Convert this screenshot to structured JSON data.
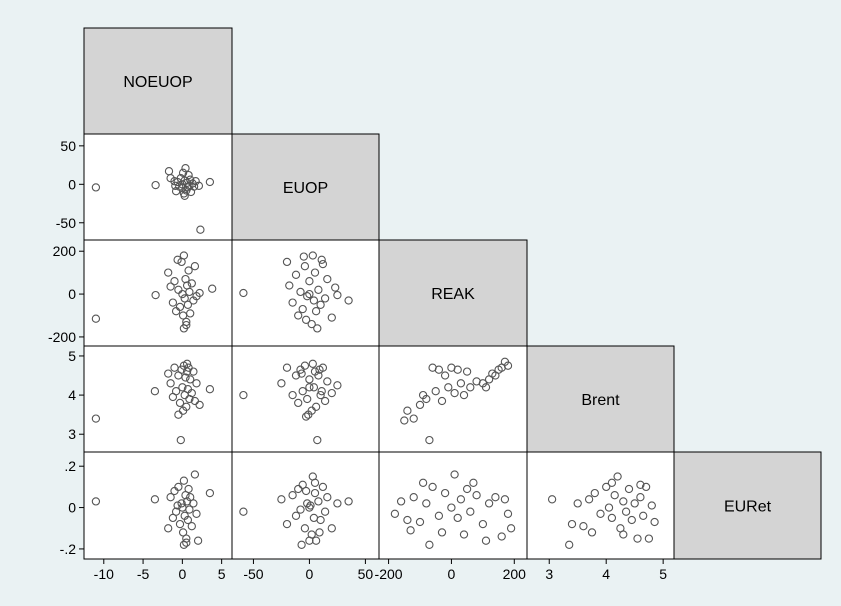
{
  "chart_data": {
    "type": "scatter",
    "subtype": "scatter-matrix (lower half)",
    "variables": [
      "NOEUOP",
      "EUOP",
      "REAK",
      "Brent",
      "EURet"
    ],
    "diagonal_labels": [
      "NOEUOP",
      "EUOP",
      "REAK",
      "Brent",
      "EURet"
    ],
    "axes": {
      "NOEUOP": {
        "range": [
          -11.5,
          5.3
        ],
        "ticks": [
          -10,
          -5,
          0,
          5
        ],
        "tick_labels": [
          "-10",
          "-5",
          "0",
          "5"
        ]
      },
      "EUOP": {
        "range": [
          -62,
          55
        ],
        "ticks": [
          -50,
          0,
          50
        ],
        "tick_labels": [
          "-50",
          "0",
          "50"
        ]
      },
      "REAK": {
        "range": [
          -205,
          215
        ],
        "ticks": [
          -200,
          0,
          200
        ],
        "tick_labels": [
          "-200",
          "0",
          "200"
        ]
      },
      "Brent": {
        "range": [
          2.75,
          5.05
        ],
        "ticks": [
          3,
          4,
          5
        ],
        "tick_labels": [
          "3",
          "4",
          "5"
        ]
      },
      "EURet": {
        "range": [
          -0.21,
          0.23
        ],
        "ticks": [
          -0.2,
          0,
          0.2
        ],
        "tick_labels": [
          "-.2",
          "0",
          ".2"
        ]
      }
    },
    "panels": [
      {
        "x": "NOEUOP",
        "y": "EUOP",
        "points": [
          [
            -11,
            -4
          ],
          [
            -3.4,
            -1
          ],
          [
            -1.7,
            17
          ],
          [
            -1.5,
            8
          ],
          [
            -1,
            4
          ],
          [
            -0.9,
            -2
          ],
          [
            -0.6,
            3
          ],
          [
            -0.4,
            -3
          ],
          [
            -0.2,
            8
          ],
          [
            0,
            0
          ],
          [
            0,
            -5
          ],
          [
            0.1,
            15
          ],
          [
            0.2,
            -12
          ],
          [
            0.3,
            5
          ],
          [
            0.4,
            21
          ],
          [
            0.5,
            -8
          ],
          [
            0.6,
            2
          ],
          [
            0.7,
            -4
          ],
          [
            0.8,
            12
          ],
          [
            0.9,
            -2
          ],
          [
            1,
            6
          ],
          [
            1.1,
            -10
          ],
          [
            1.3,
            1
          ],
          [
            1.5,
            -3
          ],
          [
            1.7,
            4
          ],
          [
            2.1,
            -2
          ],
          [
            -0.8,
            -9
          ],
          [
            0.3,
            -15
          ],
          [
            3.5,
            3
          ],
          [
            2.3,
            -59
          ]
        ]
      },
      {
        "x": "NOEUOP",
        "y": "REAK",
        "points": [
          [
            -11,
            -115
          ],
          [
            -3.4,
            -5
          ],
          [
            -1.8,
            100
          ],
          [
            -1.5,
            35
          ],
          [
            -1.2,
            -40
          ],
          [
            -1,
            60
          ],
          [
            -0.8,
            -80
          ],
          [
            -0.5,
            20
          ],
          [
            -0.3,
            -60
          ],
          [
            -0.1,
            150
          ],
          [
            0,
            0
          ],
          [
            0.1,
            -100
          ],
          [
            0.2,
            180
          ],
          [
            0.3,
            -20
          ],
          [
            0.4,
            70
          ],
          [
            0.5,
            -130
          ],
          [
            0.6,
            40
          ],
          [
            0.7,
            -50
          ],
          [
            0.8,
            110
          ],
          [
            0.9,
            10
          ],
          [
            1,
            -90
          ],
          [
            1.2,
            50
          ],
          [
            1.4,
            -30
          ],
          [
            1.6,
            130
          ],
          [
            1.8,
            -10
          ],
          [
            2.2,
            5
          ],
          [
            0.2,
            -160
          ],
          [
            -0.6,
            160
          ],
          [
            3.8,
            25
          ],
          [
            0.5,
            -145
          ]
        ]
      },
      {
        "x": "EUOP",
        "y": "REAK",
        "points": [
          [
            -59,
            5
          ],
          [
            -20,
            150
          ],
          [
            -18,
            40
          ],
          [
            -15,
            -40
          ],
          [
            -12,
            90
          ],
          [
            -10,
            -100
          ],
          [
            -8,
            10
          ],
          [
            -6,
            -70
          ],
          [
            -4,
            130
          ],
          [
            -2,
            -10
          ],
          [
            0,
            60
          ],
          [
            2,
            -140
          ],
          [
            3,
            180
          ],
          [
            4,
            -30
          ],
          [
            5,
            100
          ],
          [
            6,
            -80
          ],
          [
            8,
            20
          ],
          [
            10,
            -50
          ],
          [
            12,
            140
          ],
          [
            14,
            -20
          ],
          [
            16,
            70
          ],
          [
            20,
            -110
          ],
          [
            23,
            30
          ],
          [
            25,
            -5
          ],
          [
            35,
            -30
          ],
          [
            -5,
            175
          ],
          [
            7,
            -160
          ],
          [
            0,
            0
          ],
          [
            -3,
            -120
          ],
          [
            11,
            160
          ]
        ]
      },
      {
        "x": "NOEUOP",
        "y": "Brent",
        "points": [
          [
            -11,
            3.4
          ],
          [
            -3.5,
            4.1
          ],
          [
            -1.8,
            4.55
          ],
          [
            -1.5,
            4.3
          ],
          [
            -1.2,
            3.95
          ],
          [
            -1,
            4.7
          ],
          [
            -0.8,
            4.1
          ],
          [
            -0.5,
            4.5
          ],
          [
            -0.3,
            3.8
          ],
          [
            -0.1,
            4.65
          ],
          [
            0,
            4.2
          ],
          [
            0.1,
            3.6
          ],
          [
            0.2,
            4.75
          ],
          [
            0.3,
            4.0
          ],
          [
            0.4,
            4.45
          ],
          [
            0.5,
            3.7
          ],
          [
            0.6,
            4.6
          ],
          [
            0.7,
            4.15
          ],
          [
            0.8,
            4.7
          ],
          [
            0.9,
            3.9
          ],
          [
            1,
            4.4
          ],
          [
            1.2,
            4.05
          ],
          [
            1.4,
            4.6
          ],
          [
            1.6,
            3.85
          ],
          [
            1.8,
            4.3
          ],
          [
            2.2,
            3.75
          ],
          [
            -0.5,
            3.5
          ],
          [
            3.5,
            4.15
          ],
          [
            -0.2,
            2.85
          ],
          [
            0.6,
            4.8
          ]
        ]
      },
      {
        "x": "EUOP",
        "y": "Brent",
        "points": [
          [
            -59,
            4.0
          ],
          [
            -25,
            4.3
          ],
          [
            -20,
            4.7
          ],
          [
            -15,
            4.0
          ],
          [
            -12,
            4.5
          ],
          [
            -10,
            3.8
          ],
          [
            -8,
            4.65
          ],
          [
            -6,
            4.1
          ],
          [
            -4,
            4.75
          ],
          [
            -2,
            3.9
          ],
          [
            0,
            4.4
          ],
          [
            2,
            3.6
          ],
          [
            3,
            4.8
          ],
          [
            4,
            4.2
          ],
          [
            5,
            4.6
          ],
          [
            6,
            3.7
          ],
          [
            8,
            4.5
          ],
          [
            10,
            4.0
          ],
          [
            12,
            4.7
          ],
          [
            14,
            3.85
          ],
          [
            16,
            4.35
          ],
          [
            20,
            4.05
          ],
          [
            25,
            4.25
          ],
          [
            -3,
            3.45
          ],
          [
            7,
            2.85
          ],
          [
            0,
            4.2
          ],
          [
            -7,
            4.55
          ],
          [
            9,
            4.65
          ],
          [
            -1,
            3.5
          ],
          [
            11,
            4.1
          ]
        ]
      },
      {
        "x": "REAK",
        "y": "Brent",
        "points": [
          [
            -150,
            3.35
          ],
          [
            -140,
            3.6
          ],
          [
            -120,
            3.4
          ],
          [
            -100,
            3.75
          ],
          [
            -90,
            4.0
          ],
          [
            -80,
            3.9
          ],
          [
            -60,
            4.7
          ],
          [
            -50,
            4.1
          ],
          [
            -40,
            4.65
          ],
          [
            -30,
            3.85
          ],
          [
            -20,
            4.5
          ],
          [
            -10,
            4.2
          ],
          [
            0,
            4.7
          ],
          [
            10,
            4.05
          ],
          [
            20,
            4.65
          ],
          [
            30,
            4.3
          ],
          [
            40,
            4.0
          ],
          [
            50,
            4.6
          ],
          [
            60,
            4.2
          ],
          [
            80,
            4.35
          ],
          [
            100,
            4.3
          ],
          [
            110,
            4.2
          ],
          [
            120,
            4.4
          ],
          [
            130,
            4.55
          ],
          [
            140,
            4.5
          ],
          [
            150,
            4.65
          ],
          [
            160,
            4.7
          ],
          [
            170,
            4.85
          ],
          [
            180,
            4.75
          ],
          [
            -70,
            2.85
          ]
        ]
      },
      {
        "x": "NOEUOP",
        "y": "EURet",
        "points": [
          [
            -11,
            0.03
          ],
          [
            -3.5,
            0.04
          ],
          [
            -1.8,
            -0.1
          ],
          [
            -1.5,
            0.05
          ],
          [
            -1.2,
            -0.05
          ],
          [
            -1,
            0.08
          ],
          [
            -0.8,
            -0.02
          ],
          [
            -0.5,
            0.1
          ],
          [
            -0.3,
            -0.08
          ],
          [
            -0.1,
            0.02
          ],
          [
            0,
            0
          ],
          [
            0.1,
            -0.12
          ],
          [
            0.2,
            0.13
          ],
          [
            0.3,
            -0.04
          ],
          [
            0.4,
            0.06
          ],
          [
            0.5,
            -0.15
          ],
          [
            0.6,
            0.03
          ],
          [
            0.7,
            -0.06
          ],
          [
            0.8,
            0.09
          ],
          [
            0.9,
            -0.01
          ],
          [
            1,
            0.05
          ],
          [
            1.2,
            -0.09
          ],
          [
            1.4,
            0.02
          ],
          [
            1.6,
            0.16
          ],
          [
            1.8,
            -0.03
          ],
          [
            3.5,
            0.07
          ],
          [
            0.2,
            -0.18
          ],
          [
            0.5,
            -0.17
          ],
          [
            2,
            -0.16
          ],
          [
            -0.6,
            0.01
          ]
        ]
      },
      {
        "x": "EUOP",
        "y": "EURet",
        "points": [
          [
            -59,
            -0.02
          ],
          [
            -25,
            0.04
          ],
          [
            -20,
            -0.08
          ],
          [
            -15,
            0.06
          ],
          [
            -12,
            -0.04
          ],
          [
            -10,
            0.09
          ],
          [
            -8,
            -0.01
          ],
          [
            -6,
            0.11
          ],
          [
            -4,
            -0.1
          ],
          [
            -2,
            0.02
          ],
          [
            0,
            0
          ],
          [
            2,
            -0.13
          ],
          [
            3,
            0.15
          ],
          [
            4,
            -0.05
          ],
          [
            5,
            0.07
          ],
          [
            6,
            -0.16
          ],
          [
            8,
            0.03
          ],
          [
            10,
            -0.06
          ],
          [
            12,
            0.1
          ],
          [
            14,
            -0.02
          ],
          [
            16,
            0.05
          ],
          [
            20,
            -0.1
          ],
          [
            25,
            0.02
          ],
          [
            35,
            0.03
          ],
          [
            -7,
            -0.18
          ],
          [
            0,
            -0.16
          ],
          [
            5,
            0.12
          ],
          [
            -3,
            0.08
          ],
          [
            9,
            -0.12
          ],
          [
            1,
            0.01
          ]
        ]
      },
      {
        "x": "REAK",
        "y": "EURet",
        "points": [
          [
            -180,
            -0.03
          ],
          [
            -160,
            0.03
          ],
          [
            -140,
            -0.06
          ],
          [
            -120,
            0.05
          ],
          [
            -100,
            -0.07
          ],
          [
            -80,
            0.02
          ],
          [
            -70,
            -0.18
          ],
          [
            -60,
            0.1
          ],
          [
            -40,
            -0.04
          ],
          [
            -20,
            0.07
          ],
          [
            0,
            0
          ],
          [
            10,
            0.16
          ],
          [
            20,
            -0.05
          ],
          [
            30,
            0.04
          ],
          [
            40,
            -0.13
          ],
          [
            50,
            0.09
          ],
          [
            60,
            -0.02
          ],
          [
            80,
            0.06
          ],
          [
            100,
            -0.08
          ],
          [
            120,
            0.02
          ],
          [
            140,
            0.05
          ],
          [
            160,
            -0.14
          ],
          [
            170,
            0.04
          ],
          [
            180,
            -0.03
          ],
          [
            190,
            -0.1
          ],
          [
            -90,
            0.12
          ],
          [
            -30,
            -0.12
          ],
          [
            70,
            0.12
          ],
          [
            110,
            -0.16
          ],
          [
            -130,
            -0.11
          ]
        ]
      },
      {
        "x": "Brent",
        "y": "EURet",
        "points": [
          [
            3.05,
            0.04
          ],
          [
            3.35,
            -0.18
          ],
          [
            3.4,
            -0.08
          ],
          [
            3.5,
            0.02
          ],
          [
            3.6,
            -0.09
          ],
          [
            3.7,
            0.04
          ],
          [
            3.75,
            -0.12
          ],
          [
            3.8,
            0.07
          ],
          [
            3.9,
            -0.03
          ],
          [
            4.0,
            0.1
          ],
          [
            4.05,
            0.0
          ],
          [
            4.1,
            -0.05
          ],
          [
            4.15,
            0.06
          ],
          [
            4.2,
            0.15
          ],
          [
            4.25,
            -0.1
          ],
          [
            4.3,
            0.03
          ],
          [
            4.35,
            -0.02
          ],
          [
            4.4,
            0.09
          ],
          [
            4.45,
            -0.06
          ],
          [
            4.5,
            0.02
          ],
          [
            4.55,
            -0.15
          ],
          [
            4.6,
            0.05
          ],
          [
            4.65,
            -0.04
          ],
          [
            4.7,
            0.1
          ],
          [
            4.75,
            -0.15
          ],
          [
            4.8,
            0.01
          ],
          [
            4.85,
            -0.07
          ],
          [
            4.1,
            0.12
          ],
          [
            4.3,
            -0.13
          ],
          [
            4.6,
            0.11
          ]
        ]
      }
    ]
  }
}
